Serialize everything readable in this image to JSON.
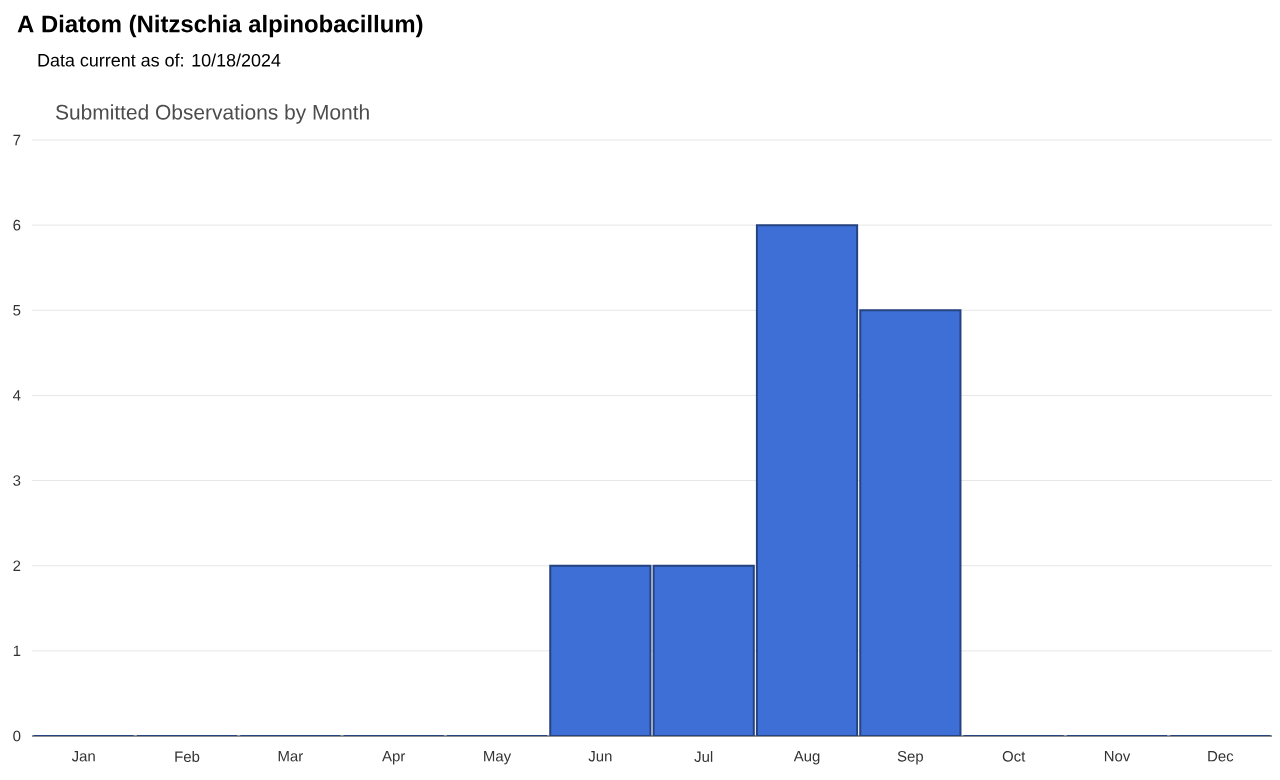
{
  "chart_data": {
    "type": "bar",
    "title": "A Diatom   (Nitzschia alpinobacillum)",
    "subtitle": "Data current as of: 10/18/2024",
    "annotations": [
      "Submitted Observations by Month"
    ],
    "categories": [
      "Jan",
      "Feb",
      "Mar",
      "Apr",
      "May",
      "Jun",
      "Jul",
      "Aug",
      "Sep",
      "Oct",
      "Nov",
      "Dec"
    ],
    "values": [
      0,
      0,
      0,
      0,
      0,
      2,
      2,
      6,
      5,
      0,
      0,
      0
    ],
    "color": "#3d6fd6",
    "ylim": [
      0,
      7
    ],
    "yticks": [
      0,
      1,
      2,
      3,
      4,
      5,
      6,
      7
    ],
    "grid": "y"
  }
}
